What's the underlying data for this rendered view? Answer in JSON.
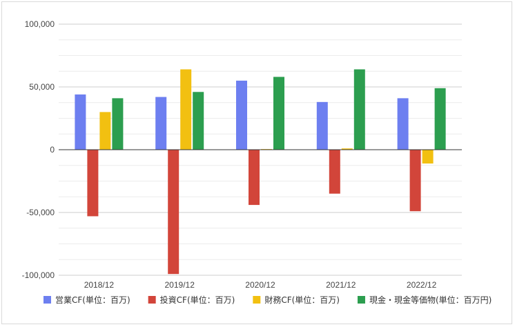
{
  "chart_data": {
    "type": "bar",
    "categories": [
      "2018/12",
      "2019/12",
      "2020/12",
      "2021/12",
      "2022/12"
    ],
    "series": [
      {
        "name": "営業CF(単位：百万)",
        "color": "#6d7ff0",
        "values": [
          44000,
          42000,
          55000,
          38000,
          41000
        ]
      },
      {
        "name": "投資CF(単位：百万)",
        "color": "#d2453a",
        "values": [
          -53000,
          -99000,
          -44000,
          -35000,
          -49000
        ]
      },
      {
        "name": "財務CF(単位：百万)",
        "color": "#f2c011",
        "values": [
          30000,
          64000,
          500,
          1000,
          -11000
        ]
      },
      {
        "name": "現金・現金等価物(単位：百万円)",
        "color": "#2c9e4f",
        "values": [
          41000,
          46000,
          58000,
          64000,
          49000
        ]
      }
    ],
    "ylim": [
      -100000,
      100000
    ],
    "yticks": [
      {
        "value": 100000,
        "label": "100,000"
      },
      {
        "value": 50000,
        "label": "50,000"
      },
      {
        "value": 0,
        "label": "0"
      },
      {
        "value": -50000,
        "label": "-50,000"
      },
      {
        "value": -100000,
        "label": "-100,000"
      }
    ],
    "minor_step": 12500,
    "grid": true,
    "legend_position": "bottom"
  }
}
